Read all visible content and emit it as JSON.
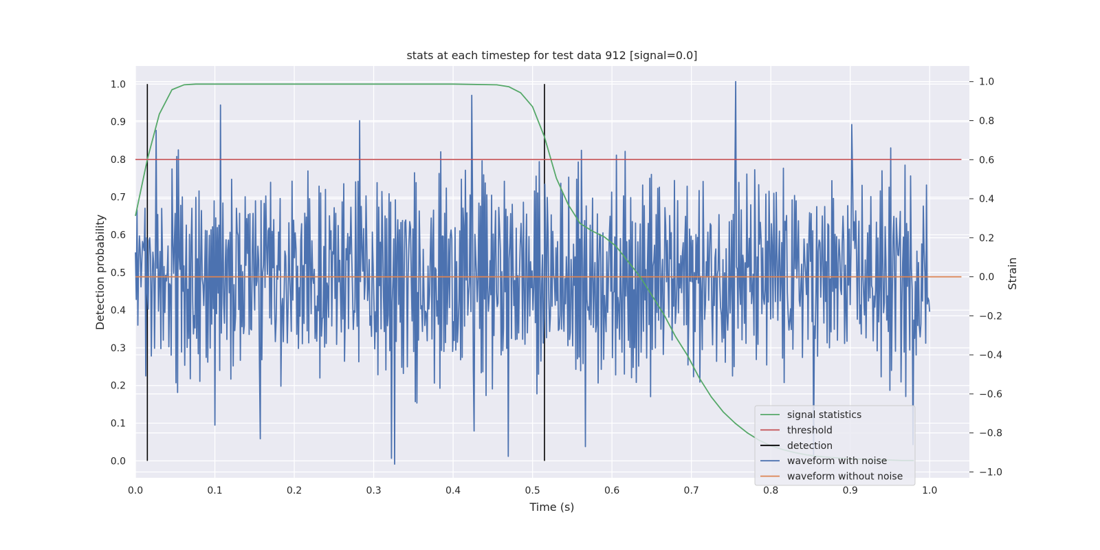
{
  "chart_data": {
    "type": "line",
    "title": "stats at each timestep for test data 912 [signal=0.0]",
    "xlabel": "Time (s)",
    "ylabel": "Detection probability",
    "ylabel_right": "Strain",
    "xlim": [
      0.0,
      1.05
    ],
    "ylim": [
      -0.045,
      1.048
    ],
    "ylim_right": [
      -1.03,
      1.08
    ],
    "xticks": [
      "0.0",
      "0.1",
      "0.2",
      "0.3",
      "0.4",
      "0.5",
      "0.6",
      "0.7",
      "0.8",
      "0.9",
      "1.0"
    ],
    "yticks": [
      "0.0",
      "0.1",
      "0.2",
      "0.3",
      "0.4",
      "0.5",
      "0.6",
      "0.7",
      "0.8",
      "0.9",
      "1.0"
    ],
    "yticks_right": [
      "−1.0",
      "−0.8",
      "−0.6",
      "−0.4",
      "−0.2",
      "0.0",
      "0.2",
      "0.4",
      "0.6",
      "0.8",
      "1.0"
    ],
    "grid": true,
    "legend_position": "lower-right",
    "colors": {
      "background": "#eaeaf2",
      "grid": "#ffffff",
      "signal": "#55a868",
      "threshold": "#c44e52",
      "detection": "#000000",
      "noisy": "#4c72b0",
      "clean": "#dd8452"
    },
    "series": [
      {
        "name": "signal statistics",
        "axis": "left",
        "x": [
          0.0,
          0.015,
          0.03,
          0.046,
          0.061,
          0.076,
          0.1,
          0.2,
          0.3,
          0.4,
          0.455,
          0.47,
          0.485,
          0.5,
          0.515,
          0.53,
          0.545,
          0.56,
          0.575,
          0.59,
          0.605,
          0.62,
          0.635,
          0.65,
          0.665,
          0.68,
          0.695,
          0.71,
          0.725,
          0.74,
          0.755,
          0.77,
          0.785,
          0.8,
          0.815,
          0.83,
          0.845,
          0.86,
          0.875,
          0.89,
          0.905,
          0.92,
          0.935,
          0.95,
          0.965,
          0.98
        ],
        "y": [
          0.65,
          0.8,
          0.92,
          0.985,
          0.998,
          1.0,
          1.0,
          1.0,
          1.0,
          1.0,
          0.998,
          0.993,
          0.977,
          0.94,
          0.86,
          0.75,
          0.68,
          0.63,
          0.61,
          0.595,
          0.57,
          0.53,
          0.49,
          0.44,
          0.39,
          0.33,
          0.28,
          0.22,
          0.17,
          0.13,
          0.1,
          0.075,
          0.055,
          0.04,
          0.03,
          0.022,
          0.016,
          0.012,
          0.009,
          0.007,
          0.005,
          0.004,
          0.003,
          0.002,
          0.001,
          0.001
        ]
      },
      {
        "name": "threshold",
        "axis": "left",
        "x": [
          0.0,
          1.04
        ],
        "y": [
          0.8,
          0.8
        ]
      },
      {
        "name": "detection",
        "axis": "left",
        "x": [
          0.015,
          0.515
        ],
        "y_range": [
          0.0,
          1.0
        ]
      },
      {
        "name": "waveform with noise",
        "axis": "right",
        "x_range": [
          0.0,
          1.0
        ],
        "peaks": [
          {
            "x": 0.107,
            "y": 0.88
          },
          {
            "x": 0.282,
            "y": 0.8
          },
          {
            "x": 0.423,
            "y": 0.93
          },
          {
            "x": 0.756,
            "y": 1.0
          },
          {
            "x": 0.902,
            "y": 0.78
          },
          {
            "x": 0.026,
            "y": 0.75
          },
          {
            "x": 0.326,
            "y": -0.96
          },
          {
            "x": 0.322,
            "y": -0.93
          },
          {
            "x": 0.469,
            "y": -0.92
          },
          {
            "x": 0.426,
            "y": -0.79
          },
          {
            "x": 0.567,
            "y": -0.87
          },
          {
            "x": 0.854,
            "y": -0.92
          },
          {
            "x": 0.979,
            "y": -0.86
          },
          {
            "x": 0.157,
            "y": -0.83
          },
          {
            "x": 0.1,
            "y": -0.76
          }
        ]
      },
      {
        "name": "waveform without noise",
        "axis": "right",
        "x": [
          0.0,
          1.04
        ],
        "y": [
          0.0,
          0.0
        ]
      }
    ]
  }
}
